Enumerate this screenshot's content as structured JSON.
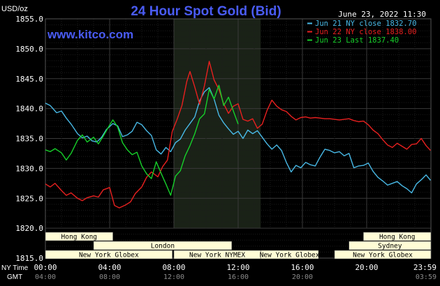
{
  "chart_data": {
    "type": "line",
    "title": "24 Hour Spot Gold (Bid)",
    "website": "www.kitco.com",
    "timestamp": "June 23, 2022 11:30",
    "ylabel": "USD/oz",
    "ylim": [
      1815,
      1855
    ],
    "yticks": [
      1855.0,
      1850.0,
      1845.0,
      1840.0,
      1835.0,
      1830.0,
      1825.0,
      1820.0,
      1815.0
    ],
    "ytick_labels": [
      "1855.0",
      "1850.0",
      "1845.0",
      "1840.0",
      "1835.0",
      "1830.0",
      "1825.0",
      "1820.0",
      "1815.0"
    ],
    "x_unit": "hours (NY time)",
    "xlim": [
      0,
      24
    ],
    "xrow1_label": "NY Time",
    "xrow1_ticks": [
      "00:00",
      "04:00",
      "08:00",
      "12:00",
      "16:00",
      "20:00",
      "23:59"
    ],
    "xrow2_label": "GMT",
    "xrow2_ticks": [
      "04:00",
      "08:00",
      "12:00",
      "16:00",
      "20:00",
      "",
      "03:59"
    ],
    "highlight_range": [
      8.0,
      13.4
    ],
    "grid": true,
    "legend_position": "top-right",
    "colors": {
      "background": "#000000",
      "grid": "#2b2b2b",
      "highlight": "#1a2217",
      "title": "#4a5cf6",
      "axis_text": "#ffffff",
      "market_bar": "#fffcd6",
      "market_border": "#555555"
    },
    "series": [
      {
        "name": "Jun 21 NY close 1832.70",
        "color": "#48b9e6",
        "x": [
          0,
          0.3,
          0.7,
          1.0,
          1.3,
          1.6,
          2.0,
          2.3,
          2.6,
          2.9,
          3.2,
          3.5,
          3.8,
          4.2,
          4.5,
          4.8,
          5.1,
          5.4,
          5.7,
          6.0,
          6.3,
          6.6,
          6.9,
          7.2,
          7.5,
          7.8,
          8.1,
          8.4,
          8.7,
          9.0,
          9.3,
          9.6,
          9.9,
          10.2,
          10.5,
          10.8,
          11.1,
          11.4,
          11.7,
          12.0,
          12.3,
          12.6,
          12.9,
          13.2,
          13.5,
          13.8,
          14.1,
          14.4,
          14.7,
          15.0,
          15.3,
          15.6,
          15.9,
          16.2,
          16.5,
          16.8,
          17.1,
          17.4,
          17.7,
          18.0,
          18.3,
          18.6,
          18.9,
          19.2,
          19.5,
          19.8,
          20.1,
          20.4,
          20.7,
          21.0,
          21.3,
          21.6,
          21.9,
          22.2,
          22.5,
          22.8,
          23.1,
          23.4,
          23.7,
          23.98
        ],
        "y": [
          1840.9,
          1840.5,
          1839.3,
          1839.6,
          1838.4,
          1837.4,
          1835.8,
          1835.1,
          1835.4,
          1834.6,
          1834.4,
          1835.2,
          1836.5,
          1837.5,
          1837.1,
          1835.3,
          1835.6,
          1836.2,
          1837.7,
          1837.3,
          1836.3,
          1835.5,
          1833.1,
          1832.4,
          1833.5,
          1832.8,
          1834.3,
          1834.9,
          1836.4,
          1837.5,
          1838.6,
          1841.3,
          1842.8,
          1843.5,
          1841.6,
          1838.9,
          1837.6,
          1836.6,
          1835.7,
          1836.2,
          1835.0,
          1836.4,
          1835.8,
          1836.3,
          1835.2,
          1834.1,
          1833.2,
          1833.9,
          1833.0,
          1831.0,
          1829.4,
          1830.5,
          1830.1,
          1831.0,
          1830.6,
          1830.4,
          1831.9,
          1833.2,
          1833.0,
          1832.6,
          1832.8,
          1832.1,
          1832.5,
          1830.1,
          1830.4,
          1830.5,
          1830.9,
          1829.5,
          1828.5,
          1827.9,
          1827.2,
          1827.5,
          1827.8,
          1827.1,
          1826.6,
          1825.9,
          1827.4,
          1828.1,
          1828.9,
          1828.0
        ]
      },
      {
        "name": "Jun 22 NY close 1838.00",
        "color": "#e8201f",
        "x": [
          0,
          0.3,
          0.6,
          1.0,
          1.3,
          1.6,
          2.0,
          2.3,
          2.6,
          3.0,
          3.3,
          3.6,
          4.0,
          4.3,
          4.6,
          5.0,
          5.3,
          5.6,
          6.0,
          6.3,
          6.6,
          7.0,
          7.3,
          7.6,
          7.9,
          8.2,
          8.5,
          8.8,
          9.0,
          9.3,
          9.6,
          9.9,
          10.2,
          10.5,
          10.8,
          11.1,
          11.4,
          11.7,
          12.0,
          12.3,
          12.6,
          12.9,
          13.2,
          13.5,
          13.8,
          14.1,
          14.4,
          14.7,
          15.0,
          15.3,
          15.6,
          15.9,
          16.2,
          16.5,
          16.8,
          17.1,
          17.4,
          17.7,
          18.0,
          18.3,
          18.6,
          18.9,
          19.2,
          19.5,
          19.8,
          20.1,
          20.4,
          20.7,
          21.0,
          21.3,
          21.6,
          21.9,
          22.2,
          22.5,
          22.8,
          23.1,
          23.4,
          23.7,
          23.98
        ],
        "y": [
          1827.4,
          1826.9,
          1827.5,
          1826.3,
          1825.5,
          1825.9,
          1825.0,
          1824.6,
          1825.1,
          1825.4,
          1825.2,
          1826.4,
          1826.8,
          1823.8,
          1823.4,
          1823.9,
          1824.4,
          1825.8,
          1826.9,
          1828.5,
          1829.4,
          1828.6,
          1830.3,
          1831.4,
          1836.2,
          1838.2,
          1840.5,
          1844.5,
          1846.2,
          1843.6,
          1840.7,
          1843.8,
          1847.9,
          1844.8,
          1843.2,
          1840.8,
          1839.2,
          1840.4,
          1840.8,
          1838.2,
          1837.9,
          1838.3,
          1836.7,
          1837.4,
          1839.7,
          1841.4,
          1840.4,
          1839.8,
          1839.5,
          1838.7,
          1838.1,
          1838.5,
          1838.6,
          1838.4,
          1838.5,
          1838.4,
          1838.3,
          1838.3,
          1838.2,
          1838.1,
          1838.2,
          1838.3,
          1838.0,
          1837.8,
          1837.9,
          1837.3,
          1836.4,
          1835.8,
          1834.8,
          1833.9,
          1833.5,
          1834.2,
          1833.7,
          1833.2,
          1834.0,
          1834.1,
          1835.0,
          1833.8,
          1833.0
        ]
      },
      {
        "name": "Jun 23 Last 1837.40",
        "color": "#16d02a",
        "x": [
          0,
          0.3,
          0.6,
          1.0,
          1.3,
          1.6,
          2.0,
          2.3,
          2.6,
          3.0,
          3.3,
          3.6,
          3.9,
          4.2,
          4.5,
          4.8,
          5.1,
          5.4,
          5.7,
          6.0,
          6.3,
          6.6,
          6.9,
          7.2,
          7.5,
          7.8,
          8.1,
          8.4,
          8.7,
          9.0,
          9.3,
          9.6,
          9.9,
          10.2,
          10.5,
          10.8,
          11.1,
          11.4,
          11.7,
          12.0
        ],
        "y": [
          1833.1,
          1832.8,
          1833.3,
          1832.6,
          1831.4,
          1832.5,
          1834.7,
          1835.6,
          1834.4,
          1835.2,
          1834.1,
          1835.4,
          1836.8,
          1838.1,
          1836.9,
          1834.3,
          1833.1,
          1832.3,
          1832.7,
          1830.4,
          1829.1,
          1828.3,
          1831.1,
          1829.2,
          1827.4,
          1825.5,
          1828.7,
          1829.6,
          1832.1,
          1833.8,
          1835.8,
          1838.3,
          1839.1,
          1843.2,
          1841.6,
          1843.9,
          1840.5,
          1841.9,
          1839.6,
          1837.4
        ]
      }
    ],
    "markets": [
      {
        "name": "Hong Kong",
        "row": 0,
        "start": 0,
        "end": 4.2
      },
      {
        "name": "London",
        "row": 1,
        "start": 3,
        "end": 11.6
      },
      {
        "name": "New York Globex",
        "row": 2,
        "start": 0,
        "end": 7.9
      },
      {
        "name": "New York NYMEX",
        "row": 2,
        "start": 8.0,
        "end": 13.4
      },
      {
        "name": "New York Globex",
        "row": 2,
        "start": 13.4,
        "end": 17.0
      },
      {
        "name": "Hong Kong",
        "row": 0,
        "start": 19.8,
        "end": 24
      },
      {
        "name": "Sydney",
        "row": 1,
        "start": 18.9,
        "end": 24
      },
      {
        "name": "New York Globex",
        "row": 2,
        "start": 18.0,
        "end": 24
      }
    ]
  }
}
